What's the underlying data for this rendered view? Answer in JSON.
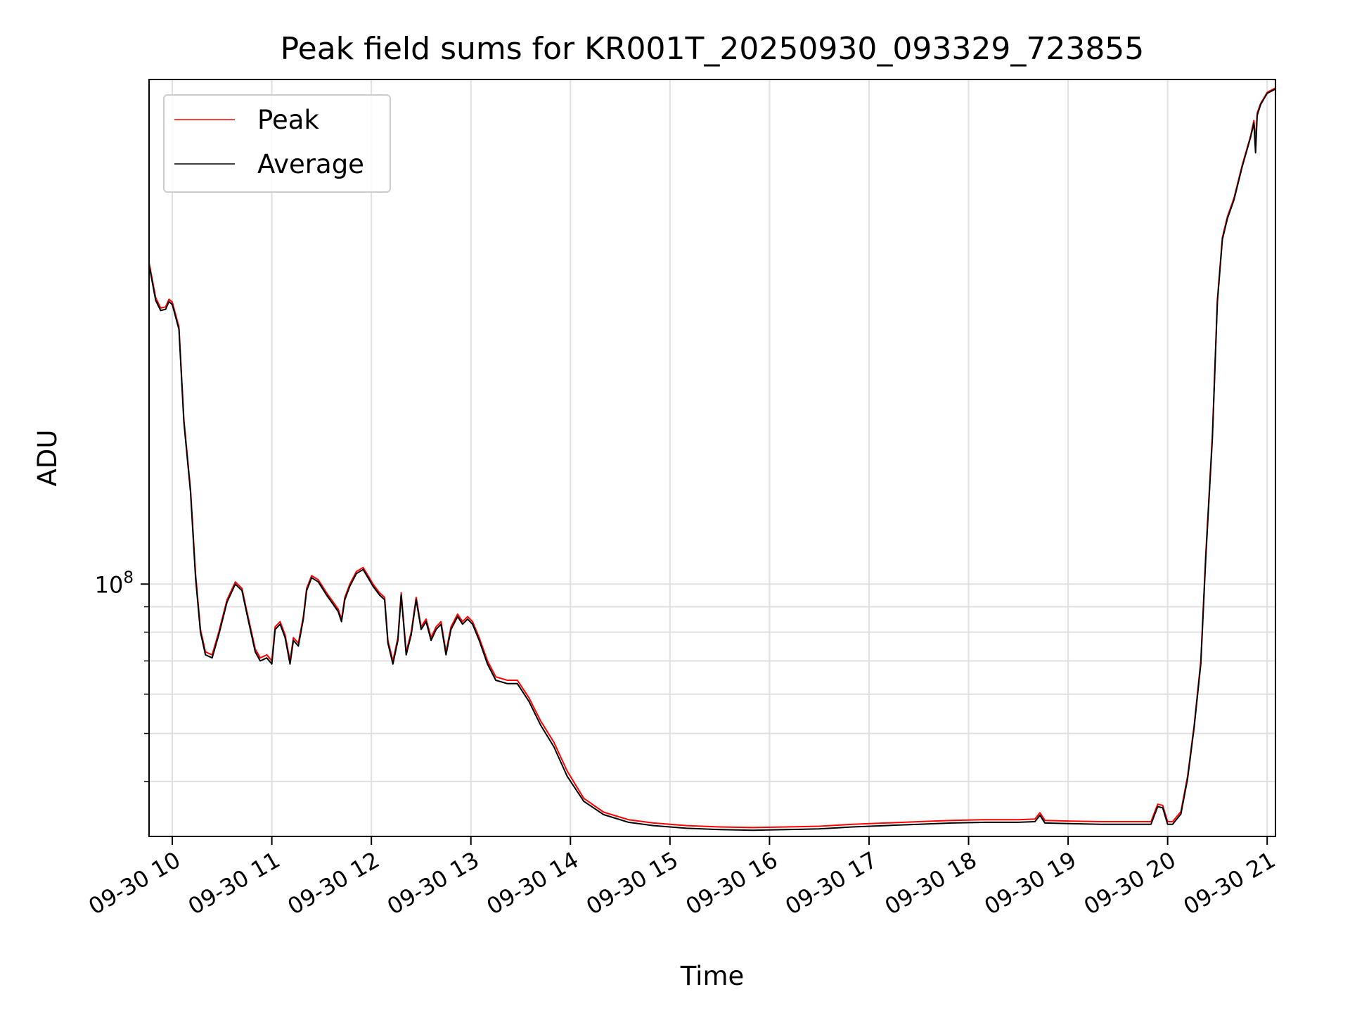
{
  "chart_data": {
    "type": "line",
    "title": "Peak field sums for KR001T_20250930_093329_723855",
    "xlabel": "Time",
    "ylabel": "ADU",
    "yscale": "log",
    "xlim": [
      "2025-09-30 09:46",
      "2025-09-30 21:05"
    ],
    "ylim": [
      31000000,
      1040000000
    ],
    "x_ticks": [
      {
        "value": "2025-09-30 10:00",
        "label": "09-30 10"
      },
      {
        "value": "2025-09-30 11:00",
        "label": "09-30 11"
      },
      {
        "value": "2025-09-30 12:00",
        "label": "09-30 12"
      },
      {
        "value": "2025-09-30 13:00",
        "label": "09-30 13"
      },
      {
        "value": "2025-09-30 14:00",
        "label": "09-30 14"
      },
      {
        "value": "2025-09-30 15:00",
        "label": "09-30 15"
      },
      {
        "value": "2025-09-30 16:00",
        "label": "09-30 16"
      },
      {
        "value": "2025-09-30 17:00",
        "label": "09-30 17"
      },
      {
        "value": "2025-09-30 18:00",
        "label": "09-30 18"
      },
      {
        "value": "2025-09-30 19:00",
        "label": "09-30 19"
      },
      {
        "value": "2025-09-30 20:00",
        "label": "09-30 20"
      },
      {
        "value": "2025-09-30 21:00",
        "label": "09-30 21"
      }
    ],
    "y_ticks_major": [
      {
        "value": 100000000,
        "base": "10",
        "exp": "8"
      }
    ],
    "y_ticks_minor": [
      40000000,
      50000000,
      60000000,
      70000000,
      80000000,
      90000000
    ],
    "grid": true,
    "legend_position": "top-left",
    "series": [
      {
        "name": "Peak",
        "color": "#ff0000",
        "x": [
          "2025-09-30 09:46",
          "2025-09-30 09:50",
          "2025-09-30 09:53",
          "2025-09-30 09:56",
          "2025-09-30 09:58",
          "2025-09-30 10:00",
          "2025-09-30 10:04",
          "2025-09-30 10:07",
          "2025-09-30 10:11",
          "2025-09-30 10:14",
          "2025-09-30 10:17",
          "2025-09-30 10:20",
          "2025-09-30 10:24",
          "2025-09-30 10:28",
          "2025-09-30 10:33",
          "2025-09-30 10:38",
          "2025-09-30 10:42",
          "2025-09-30 10:45",
          "2025-09-30 10:50",
          "2025-09-30 10:53",
          "2025-09-30 10:57",
          "2025-09-30 11:00",
          "2025-09-30 11:02",
          "2025-09-30 11:05",
          "2025-09-30 11:08",
          "2025-09-30 11:11",
          "2025-09-30 11:13",
          "2025-09-30 11:16",
          "2025-09-30 11:19",
          "2025-09-30 11:21",
          "2025-09-30 11:24",
          "2025-09-30 11:28",
          "2025-09-30 11:33",
          "2025-09-30 11:37",
          "2025-09-30 11:40",
          "2025-09-30 11:42",
          "2025-09-30 11:44",
          "2025-09-30 11:47",
          "2025-09-30 11:51",
          "2025-09-30 11:55",
          "2025-09-30 11:58",
          "2025-09-30 12:01",
          "2025-09-30 12:05",
          "2025-09-30 12:08",
          "2025-09-30 12:10",
          "2025-09-30 12:13",
          "2025-09-30 12:16",
          "2025-09-30 12:18",
          "2025-09-30 12:21",
          "2025-09-30 12:24",
          "2025-09-30 12:27",
          "2025-09-30 12:30",
          "2025-09-30 12:33",
          "2025-09-30 12:36",
          "2025-09-30 12:39",
          "2025-09-30 12:42",
          "2025-09-30 12:45",
          "2025-09-30 12:48",
          "2025-09-30 12:52",
          "2025-09-30 12:55",
          "2025-09-30 12:58",
          "2025-09-30 13:01",
          "2025-09-30 13:05",
          "2025-09-30 13:10",
          "2025-09-30 13:15",
          "2025-09-30 13:22",
          "2025-09-30 13:28",
          "2025-09-30 13:35",
          "2025-09-30 13:42",
          "2025-09-30 13:50",
          "2025-09-30 13:58",
          "2025-09-30 14:08",
          "2025-09-30 14:20",
          "2025-09-30 14:35",
          "2025-09-30 14:50",
          "2025-09-30 15:10",
          "2025-09-30 15:30",
          "2025-09-30 15:50",
          "2025-09-30 16:10",
          "2025-09-30 16:30",
          "2025-09-30 16:50",
          "2025-09-30 17:10",
          "2025-09-30 17:30",
          "2025-09-30 17:50",
          "2025-09-30 18:10",
          "2025-09-30 18:30",
          "2025-09-30 18:40",
          "2025-09-30 18:43",
          "2025-09-30 18:46",
          "2025-09-30 19:00",
          "2025-09-30 19:20",
          "2025-09-30 19:40",
          "2025-09-30 19:50",
          "2025-09-30 19:54",
          "2025-09-30 19:57",
          "2025-09-30 20:00",
          "2025-09-30 20:03",
          "2025-09-30 20:08",
          "2025-09-30 20:12",
          "2025-09-30 20:16",
          "2025-09-30 20:20",
          "2025-09-30 20:23",
          "2025-09-30 20:27",
          "2025-09-30 20:30",
          "2025-09-30 20:33",
          "2025-09-30 20:36",
          "2025-09-30 20:40",
          "2025-09-30 20:45",
          "2025-09-30 20:50",
          "2025-09-30 20:52",
          "2025-09-30 20:53",
          "2025-09-30 20:54",
          "2025-09-30 20:56",
          "2025-09-30 21:00",
          "2025-09-30 21:05"
        ],
        "y": [
          445000000,
          378000000,
          360000000,
          362000000,
          375000000,
          370000000,
          330000000,
          215000000,
          155000000,
          105000000,
          81000000,
          73000000,
          72000000,
          80000000,
          93000000,
          101000000,
          98000000,
          88000000,
          74000000,
          71000000,
          72000000,
          70000000,
          82000000,
          84000000,
          79000000,
          70000000,
          78000000,
          76000000,
          86000000,
          98000000,
          104000000,
          102000000,
          96000000,
          92000000,
          89000000,
          85000000,
          94000000,
          100000000,
          106000000,
          108000000,
          104000000,
          100000000,
          96000000,
          94000000,
          77000000,
          70000000,
          78000000,
          96000000,
          73000000,
          80000000,
          94000000,
          82000000,
          85000000,
          78000000,
          82000000,
          84000000,
          73000000,
          82000000,
          87000000,
          84000000,
          86000000,
          84000000,
          78000000,
          70000000,
          65000000,
          64000000,
          64000000,
          59000000,
          53000000,
          48000000,
          42000000,
          37000000,
          34700000,
          33500000,
          33000000,
          32600000,
          32400000,
          32300000,
          32400000,
          32500000,
          32800000,
          33000000,
          33200000,
          33400000,
          33500000,
          33500000,
          33600000,
          34600000,
          33400000,
          33300000,
          33200000,
          33200000,
          33200000,
          36000000,
          35800000,
          33200000,
          33200000,
          34800000,
          41000000,
          52000000,
          70000000,
          115000000,
          200000000,
          375000000,
          500000000,
          550000000,
          600000000,
          700000000,
          800000000,
          860000000,
          780000000,
          890000000,
          930000000,
          980000000,
          1000000000
        ]
      },
      {
        "name": "Average",
        "color": "#000000",
        "x": [
          "2025-09-30 09:46",
          "2025-09-30 09:50",
          "2025-09-30 09:53",
          "2025-09-30 09:56",
          "2025-09-30 09:58",
          "2025-09-30 10:00",
          "2025-09-30 10:04",
          "2025-09-30 10:07",
          "2025-09-30 10:11",
          "2025-09-30 10:14",
          "2025-09-30 10:17",
          "2025-09-30 10:20",
          "2025-09-30 10:24",
          "2025-09-30 10:28",
          "2025-09-30 10:33",
          "2025-09-30 10:38",
          "2025-09-30 10:42",
          "2025-09-30 10:45",
          "2025-09-30 10:50",
          "2025-09-30 10:53",
          "2025-09-30 10:57",
          "2025-09-30 11:00",
          "2025-09-30 11:02",
          "2025-09-30 11:05",
          "2025-09-30 11:08",
          "2025-09-30 11:11",
          "2025-09-30 11:13",
          "2025-09-30 11:16",
          "2025-09-30 11:19",
          "2025-09-30 11:21",
          "2025-09-30 11:24",
          "2025-09-30 11:28",
          "2025-09-30 11:33",
          "2025-09-30 11:37",
          "2025-09-30 11:40",
          "2025-09-30 11:42",
          "2025-09-30 11:44",
          "2025-09-30 11:47",
          "2025-09-30 11:51",
          "2025-09-30 11:55",
          "2025-09-30 11:58",
          "2025-09-30 12:01",
          "2025-09-30 12:05",
          "2025-09-30 12:08",
          "2025-09-30 12:10",
          "2025-09-30 12:13",
          "2025-09-30 12:16",
          "2025-09-30 12:18",
          "2025-09-30 12:21",
          "2025-09-30 12:24",
          "2025-09-30 12:27",
          "2025-09-30 12:30",
          "2025-09-30 12:33",
          "2025-09-30 12:36",
          "2025-09-30 12:39",
          "2025-09-30 12:42",
          "2025-09-30 12:45",
          "2025-09-30 12:48",
          "2025-09-30 12:52",
          "2025-09-30 12:55",
          "2025-09-30 12:58",
          "2025-09-30 13:01",
          "2025-09-30 13:05",
          "2025-09-30 13:10",
          "2025-09-30 13:15",
          "2025-09-30 13:22",
          "2025-09-30 13:28",
          "2025-09-30 13:35",
          "2025-09-30 13:42",
          "2025-09-30 13:50",
          "2025-09-30 13:58",
          "2025-09-30 14:08",
          "2025-09-30 14:20",
          "2025-09-30 14:35",
          "2025-09-30 14:50",
          "2025-09-30 15:10",
          "2025-09-30 15:30",
          "2025-09-30 15:50",
          "2025-09-30 16:10",
          "2025-09-30 16:30",
          "2025-09-30 16:50",
          "2025-09-30 17:10",
          "2025-09-30 17:30",
          "2025-09-30 17:50",
          "2025-09-30 18:10",
          "2025-09-30 18:30",
          "2025-09-30 18:40",
          "2025-09-30 18:43",
          "2025-09-30 18:46",
          "2025-09-30 19:00",
          "2025-09-30 19:20",
          "2025-09-30 19:40",
          "2025-09-30 19:50",
          "2025-09-30 19:54",
          "2025-09-30 19:57",
          "2025-09-30 20:00",
          "2025-09-30 20:03",
          "2025-09-30 20:08",
          "2025-09-30 20:12",
          "2025-09-30 20:16",
          "2025-09-30 20:20",
          "2025-09-30 20:23",
          "2025-09-30 20:27",
          "2025-09-30 20:30",
          "2025-09-30 20:33",
          "2025-09-30 20:36",
          "2025-09-30 20:40",
          "2025-09-30 20:45",
          "2025-09-30 20:50",
          "2025-09-30 20:52",
          "2025-09-30 20:53",
          "2025-09-30 20:54",
          "2025-09-30 20:56",
          "2025-09-30 21:00",
          "2025-09-30 21:05"
        ],
        "y": [
          440000000,
          373000000,
          356000000,
          358000000,
          371000000,
          366000000,
          326000000,
          212000000,
          153000000,
          103000000,
          80000000,
          72000000,
          71000000,
          79000000,
          92000000,
          100000000,
          97000000,
          87000000,
          73000000,
          70000000,
          71000000,
          69000000,
          81000000,
          83000000,
          78000000,
          69000000,
          77000000,
          75000000,
          85000000,
          97000000,
          103000000,
          101000000,
          95000000,
          91000000,
          88000000,
          84000000,
          93000000,
          99000000,
          105000000,
          107000000,
          103000000,
          99000000,
          95000000,
          93000000,
          76000000,
          69000000,
          77000000,
          95000000,
          72000000,
          79000000,
          93000000,
          81000000,
          84000000,
          77000000,
          81000000,
          83000000,
          72000000,
          81000000,
          86000000,
          83000000,
          85000000,
          83000000,
          77000000,
          69000000,
          64000000,
          63000000,
          63000000,
          58000000,
          52000000,
          47000000,
          41000000,
          36500000,
          34300000,
          33100000,
          32600000,
          32200000,
          32000000,
          31900000,
          32000000,
          32100000,
          32400000,
          32600000,
          32800000,
          33000000,
          33100000,
          33100000,
          33200000,
          34200000,
          33000000,
          32900000,
          32800000,
          32800000,
          32800000,
          35600000,
          35400000,
          32800000,
          32800000,
          34400000,
          40500000,
          51500000,
          69000000,
          113000000,
          197000000,
          370000000,
          495000000,
          545000000,
          595000000,
          695000000,
          795000000,
          850000000,
          740000000,
          880000000,
          925000000,
          975000000,
          995000000
        ]
      }
    ]
  }
}
